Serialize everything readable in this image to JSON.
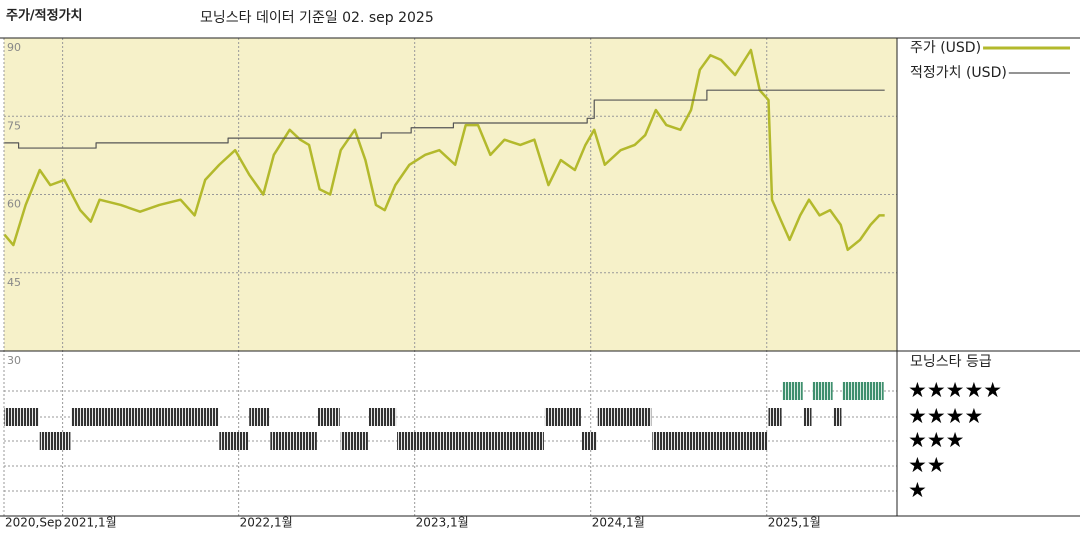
{
  "chart_data": {
    "type": "line",
    "title": "주가/적정가치",
    "subtitle": "모닝스타 데이터 기준일 02. sep 2025",
    "xlim": [
      2020.667,
      2025.74
    ],
    "xticks": [
      {
        "value": 2020.667,
        "label": "2020,Sep"
      },
      {
        "value": 2021,
        "label": "2021,1월"
      },
      {
        "value": 2022,
        "label": "2022,1월"
      },
      {
        "value": 2023,
        "label": "2023,1월"
      },
      {
        "value": 2024,
        "label": "2024,1월"
      },
      {
        "value": 2025,
        "label": "2025,1월"
      }
    ],
    "ylim": [
      30,
      90
    ],
    "yticks": [
      90,
      75,
      60,
      45,
      30
    ],
    "grid": true,
    "background": "#f6f1c9",
    "series": [
      {
        "name": "주가 (USD)",
        "color": "#b3b92c",
        "x": [
          2020.67,
          2020.72,
          2020.79,
          2020.87,
          2020.93,
          2021.01,
          2021.1,
          2021.16,
          2021.21,
          2021.33,
          2021.44,
          2021.55,
          2021.67,
          2021.75,
          2021.81,
          2021.89,
          2021.98,
          2022.06,
          2022.14,
          2022.2,
          2022.29,
          2022.35,
          2022.4,
          2022.46,
          2022.52,
          2022.58,
          2022.66,
          2022.72,
          2022.78,
          2022.83,
          2022.89,
          2022.97,
          2023.06,
          2023.14,
          2023.23,
          2023.29,
          2023.36,
          2023.43,
          2023.51,
          2023.6,
          2023.68,
          2023.76,
          2023.83,
          2023.91,
          2023.97,
          2024.02,
          2024.08,
          2024.17,
          2024.25,
          2024.31,
          2024.37,
          2024.43,
          2024.51,
          2024.57,
          2024.62,
          2024.68,
          2024.74,
          2024.82,
          2024.91,
          2024.96,
          2025.01,
          2025.03,
          2025.08,
          2025.13,
          2025.19,
          2025.24,
          2025.3,
          2025.36,
          2025.42,
          2025.46,
          2025.53,
          2025.59,
          2025.64,
          2025.67
        ],
        "values": [
          52.3,
          50.3,
          58,
          64.7,
          61.8,
          62.8,
          57,
          54.8,
          59,
          58,
          56.7,
          58,
          59,
          56,
          62.8,
          65.7,
          68.5,
          63.8,
          60,
          67.6,
          72.4,
          70.5,
          69.5,
          61,
          60,
          68.5,
          72.4,
          66.6,
          58,
          57,
          61.8,
          65.7,
          67.6,
          68.5,
          65.7,
          73.3,
          73.3,
          67.6,
          70.5,
          69.5,
          70.5,
          61.8,
          66.6,
          64.7,
          69.5,
          72.4,
          65.7,
          68.5,
          69.5,
          71.4,
          76.2,
          73.3,
          72.4,
          76.2,
          83.9,
          86.7,
          85.8,
          82.9,
          87.7,
          80,
          78.1,
          59,
          55.1,
          51.3,
          56,
          59,
          56,
          57,
          54.2,
          49.4,
          51.3,
          54.2,
          56,
          56
        ]
      },
      {
        "name": "적정가치 (USD)",
        "color": "#555555",
        "step": "post",
        "x": [
          2020.67,
          2020.75,
          2021.19,
          2021.94,
          2022.81,
          2022.98,
          2023.22,
          2023.98,
          2024.02,
          2024.66,
          2025.67
        ],
        "values": [
          69.9,
          68.9,
          69.9,
          70.8,
          71.8,
          72.8,
          73.7,
          74.6,
          78.1,
          80,
          80
        ]
      }
    ],
    "rating": {
      "title": "모닝스타 등급",
      "levels": [
        5,
        4,
        3,
        2,
        1
      ],
      "labels": [
        "★★★★★",
        "★★★★",
        "★★★",
        "★★",
        "★"
      ],
      "colors": {
        "5": "#3f8f6e",
        "default": "#333333"
      },
      "start": [
        2020.67,
        2020.87,
        2021.05,
        2021.89,
        2022.06,
        2022.18,
        2022.45,
        2022.58,
        2022.74,
        2022.9,
        2023.74,
        2023.95,
        2024.04,
        2024.35,
        2025.01,
        2025.09,
        2025.21,
        2025.26,
        2025.38,
        2025.43
      ],
      "end": [
        2020.87,
        2021.05,
        2021.89,
        2022.06,
        2022.18,
        2022.45,
        2022.58,
        2022.74,
        2022.9,
        2023.74,
        2023.95,
        2024.04,
        2024.35,
        2025.01,
        2025.09,
        2025.21,
        2025.26,
        2025.38,
        2025.43,
        2025.67
      ],
      "values": [
        4,
        3,
        4,
        3,
        4,
        3,
        4,
        3,
        4,
        3,
        4,
        3,
        4,
        3,
        4,
        5,
        4,
        5,
        4,
        5
      ]
    }
  }
}
